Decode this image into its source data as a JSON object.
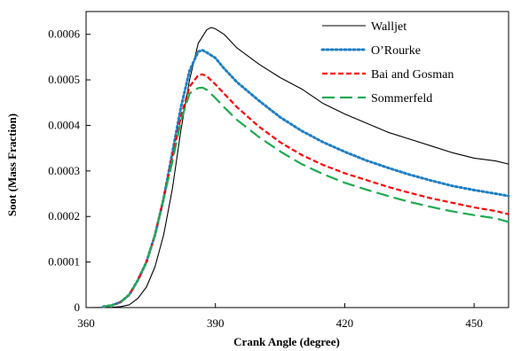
{
  "chart_data": {
    "type": "line",
    "title": "",
    "xlabel": "Crank Angle (degree)",
    "ylabel": "Soot (Mass Fraction)",
    "xlim": [
      360,
      458
    ],
    "ylim": [
      0,
      0.00065
    ],
    "xticks": [
      360,
      390,
      420,
      450
    ],
    "xtick_labels": [
      "360",
      "390",
      "420",
      "450"
    ],
    "yticks": [
      0,
      0.0001,
      0.0002,
      0.0003,
      0.0004,
      0.0005,
      0.0006
    ],
    "ytick_labels": [
      "0",
      "0.0001",
      "0.0002",
      "0.0003",
      "0.0004",
      "0.0005",
      "0.0006"
    ],
    "grid": false,
    "legend_position": "top-right",
    "series": [
      {
        "name": "Walljet",
        "color": "#000000",
        "style": "solid",
        "x": [
          360,
          366,
          368,
          370,
          372,
          374,
          376,
          378,
          380,
          382,
          384,
          386,
          388,
          389,
          390,
          392,
          395,
          400,
          405,
          410,
          415,
          420,
          425,
          430,
          435,
          440,
          445,
          450,
          455,
          458
        ],
        "y": [
          0,
          5e-07,
          2e-06,
          6e-06,
          2e-05,
          4.5e-05,
          9e-05,
          0.00016,
          0.00026,
          0.00039,
          0.0005,
          0.00058,
          0.00061,
          0.000615,
          0.000612,
          0.0006,
          0.00057,
          0.000535,
          0.000505,
          0.00048,
          0.000448,
          0.000425,
          0.000405,
          0.000385,
          0.00037,
          0.000355,
          0.00034,
          0.000328,
          0.000322,
          0.000315
        ]
      },
      {
        "name": "O’Rourke",
        "color": "#1f7fc4",
        "style": "dotted",
        "x": [
          364,
          366,
          368,
          370,
          372,
          374,
          376,
          378,
          380,
          382,
          384,
          386,
          387,
          388,
          390,
          392,
          395,
          400,
          405,
          410,
          415,
          420,
          425,
          430,
          435,
          440,
          445,
          450,
          455,
          458
        ],
        "y": [
          2e-06,
          5e-06,
          1.2e-05,
          2.8e-05,
          6e-05,
          0.0001,
          0.00016,
          0.00024,
          0.00034,
          0.00044,
          0.00052,
          0.000562,
          0.000565,
          0.00056,
          0.000548,
          0.000525,
          0.000495,
          0.000455,
          0.000418,
          0.000388,
          0.000363,
          0.000342,
          0.000323,
          0.000307,
          0.000292,
          0.000279,
          0.000267,
          0.000258,
          0.00025,
          0.000245
        ]
      },
      {
        "name": "Bai and Gosman",
        "color": "#ff0000",
        "style": "short-dash",
        "x": [
          364,
          366,
          368,
          370,
          372,
          374,
          376,
          378,
          380,
          382,
          384,
          386,
          387,
          388,
          390,
          392,
          395,
          400,
          405,
          410,
          415,
          420,
          425,
          430,
          435,
          440,
          445,
          450,
          455,
          458
        ],
        "y": [
          2e-06,
          5e-06,
          1.2e-05,
          2.8e-05,
          6e-05,
          0.0001,
          0.00016,
          0.00024,
          0.00033,
          0.00042,
          0.000485,
          0.00051,
          0.000512,
          0.000508,
          0.00049,
          0.00047,
          0.00044,
          0.000398,
          0.000363,
          0.000335,
          0.000313,
          0.000295,
          0.00028,
          0.000265,
          0.000252,
          0.00024,
          0.00023,
          0.00022,
          0.000212,
          0.000205
        ]
      },
      {
        "name": "Sommerfeld",
        "color": "#1faa50",
        "style": "long-dash",
        "x": [
          364,
          366,
          368,
          370,
          372,
          374,
          376,
          378,
          380,
          382,
          384,
          386,
          387,
          388,
          390,
          392,
          395,
          400,
          405,
          410,
          415,
          420,
          425,
          430,
          435,
          440,
          445,
          450,
          455,
          458
        ],
        "y": [
          2e-06,
          5e-06,
          1.2e-05,
          2.8e-05,
          6e-05,
          0.0001,
          0.00016,
          0.00024,
          0.00032,
          0.00041,
          0.00047,
          0.000482,
          0.000483,
          0.000478,
          0.00046,
          0.00044,
          0.000412,
          0.000375,
          0.000343,
          0.000315,
          0.000293,
          0.000274,
          0.000259,
          0.000245,
          0.000232,
          0.000221,
          0.000211,
          0.000203,
          0.000196,
          0.000188
        ]
      }
    ]
  }
}
